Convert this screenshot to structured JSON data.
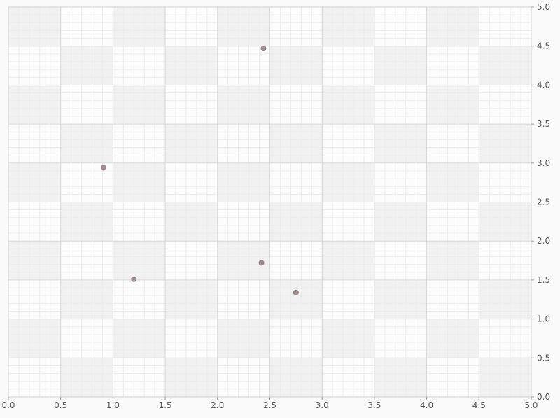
{
  "chart_data": {
    "type": "scatter",
    "title": "",
    "xlabel": "",
    "ylabel": "",
    "xlim": [
      0,
      5
    ],
    "ylim": [
      0,
      5
    ],
    "x_ticks": [
      "0.0",
      "0.5",
      "1.0",
      "1.5",
      "2.0",
      "2.5",
      "3.0",
      "3.5",
      "4.0",
      "4.5",
      "5.0"
    ],
    "y_ticks": [
      "0.0",
      "0.5",
      "1.0",
      "1.5",
      "2.0",
      "2.5",
      "3.0",
      "3.5",
      "4.0",
      "4.5",
      "5.0"
    ],
    "y_axis_position": "right",
    "grid": true,
    "legend": "none",
    "colors": {
      "point": "#a08c8c",
      "band_dark": "#f1f1f1",
      "band_light": "#fcfcfc",
      "grid_major": "#d8d8d8",
      "grid_minor": "#ececec"
    },
    "series": [
      {
        "x": [
          0.91,
          1.2,
          2.42,
          2.44,
          2.75
        ],
        "y": [
          2.94,
          1.51,
          1.72,
          4.47,
          1.34
        ]
      }
    ]
  }
}
